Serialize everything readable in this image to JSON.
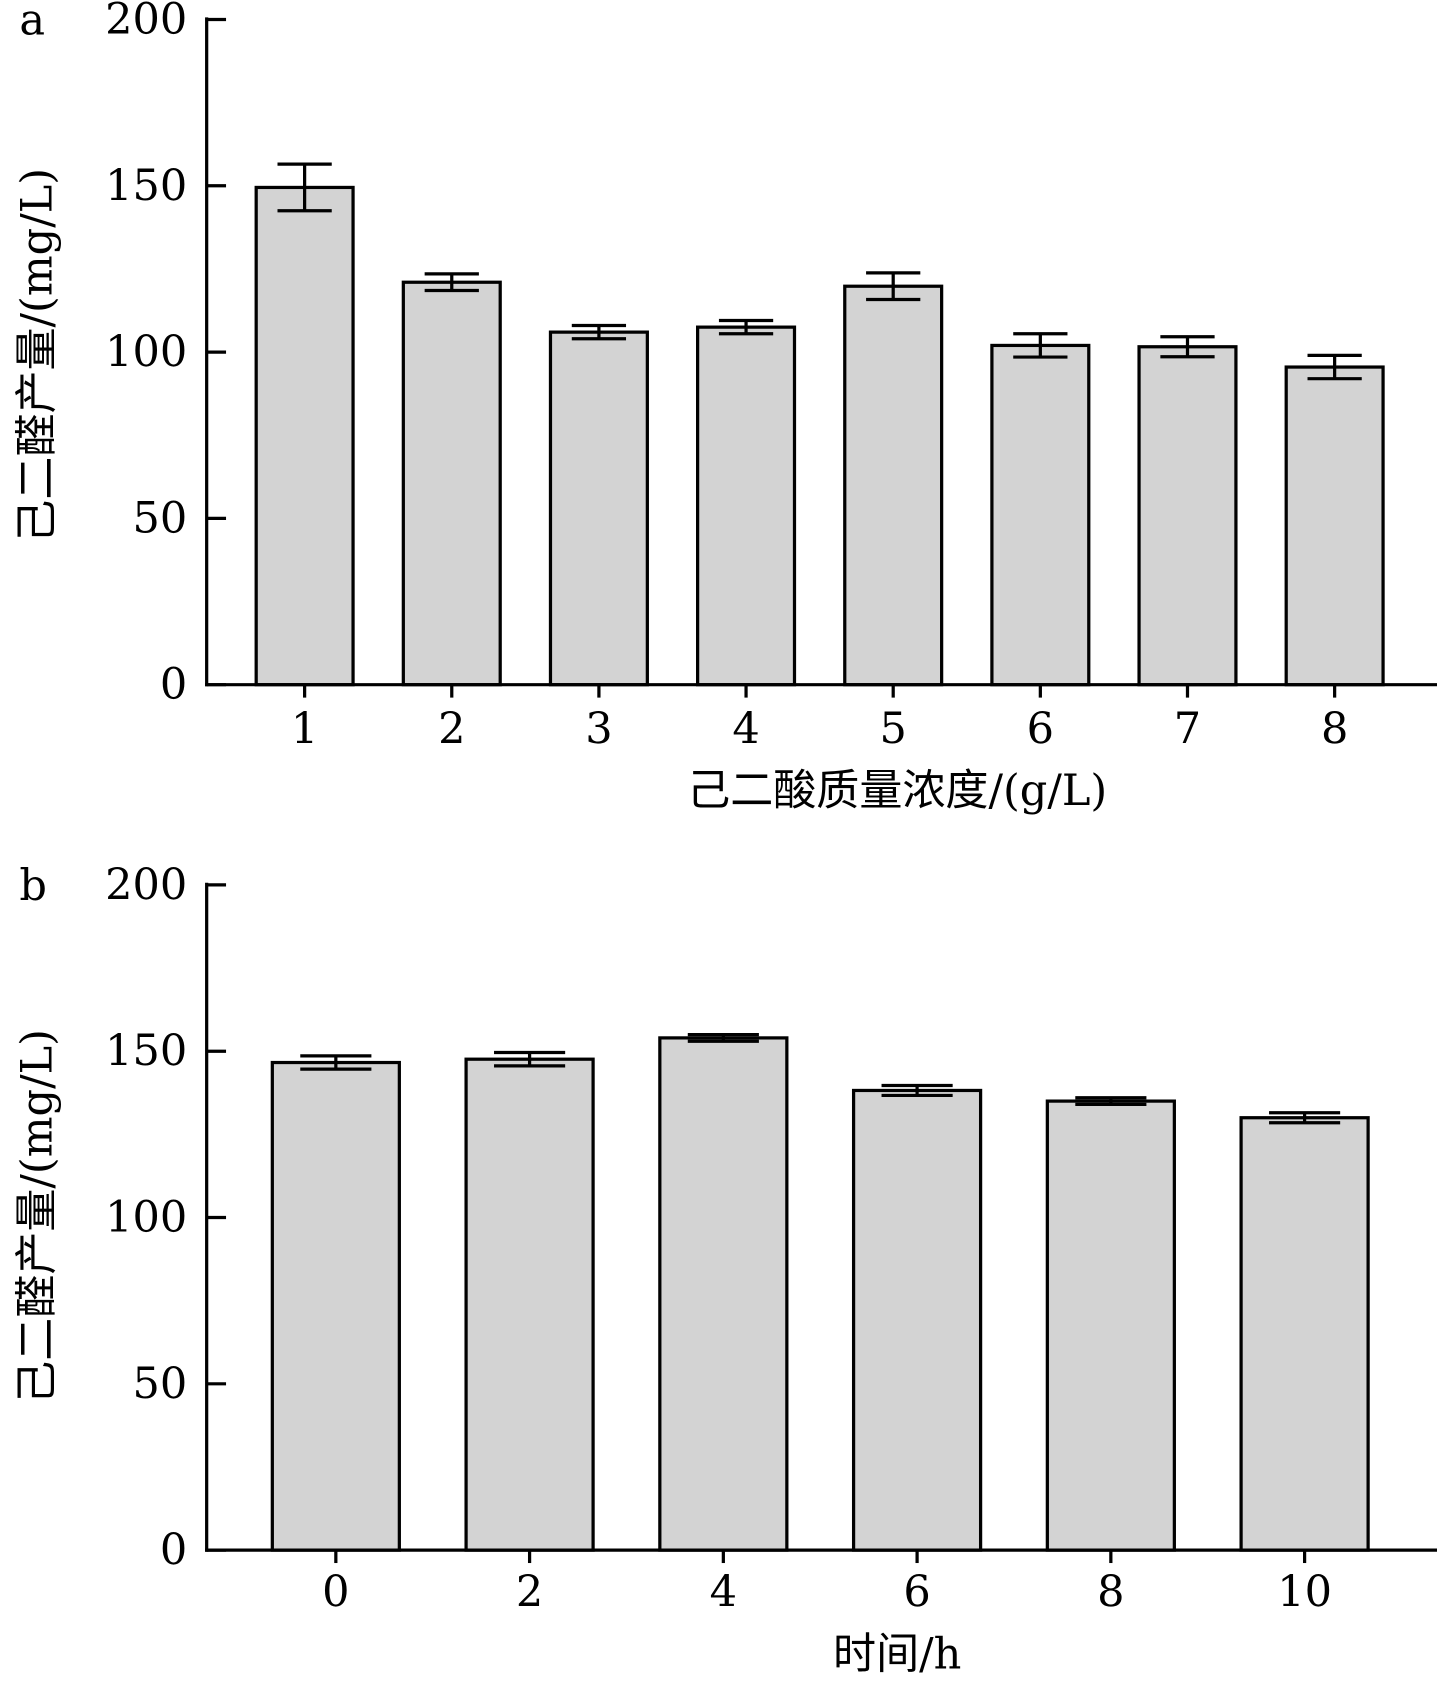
{
  "chart_data": [
    {
      "panel": "a",
      "type": "bar",
      "xlabel": "己二酸质量浓度/(g/L)",
      "ylabel": "己二醛产量/(mg/L)",
      "categories": [
        "1",
        "2",
        "3",
        "4",
        "5",
        "6",
        "7",
        "8"
      ],
      "values": [
        149.5,
        121,
        106,
        107.5,
        119.8,
        102,
        101.6,
        95.5
      ],
      "errors": [
        7,
        2.5,
        2,
        2,
        4,
        3.5,
        3,
        3.5
      ],
      "ylim": [
        0,
        200
      ],
      "yticks": [
        "0",
        "50",
        "100",
        "150",
        "200"
      ],
      "bar_color": "#d3d3d3",
      "grid": false
    },
    {
      "panel": "b",
      "type": "bar",
      "xlabel": "时间/h",
      "ylabel": "己二醛产量/(mg/L)",
      "categories": [
        "0",
        "2",
        "4",
        "6",
        "8",
        "10"
      ],
      "values": [
        146.6,
        147.6,
        154,
        138.2,
        135,
        130
      ],
      "errors": [
        2,
        2,
        1,
        1.5,
        1,
        1.5
      ],
      "ylim": [
        0,
        200
      ],
      "yticks": [
        "0",
        "50",
        "100",
        "150",
        "200"
      ],
      "bar_color": "#d3d3d3",
      "grid": false
    }
  ]
}
